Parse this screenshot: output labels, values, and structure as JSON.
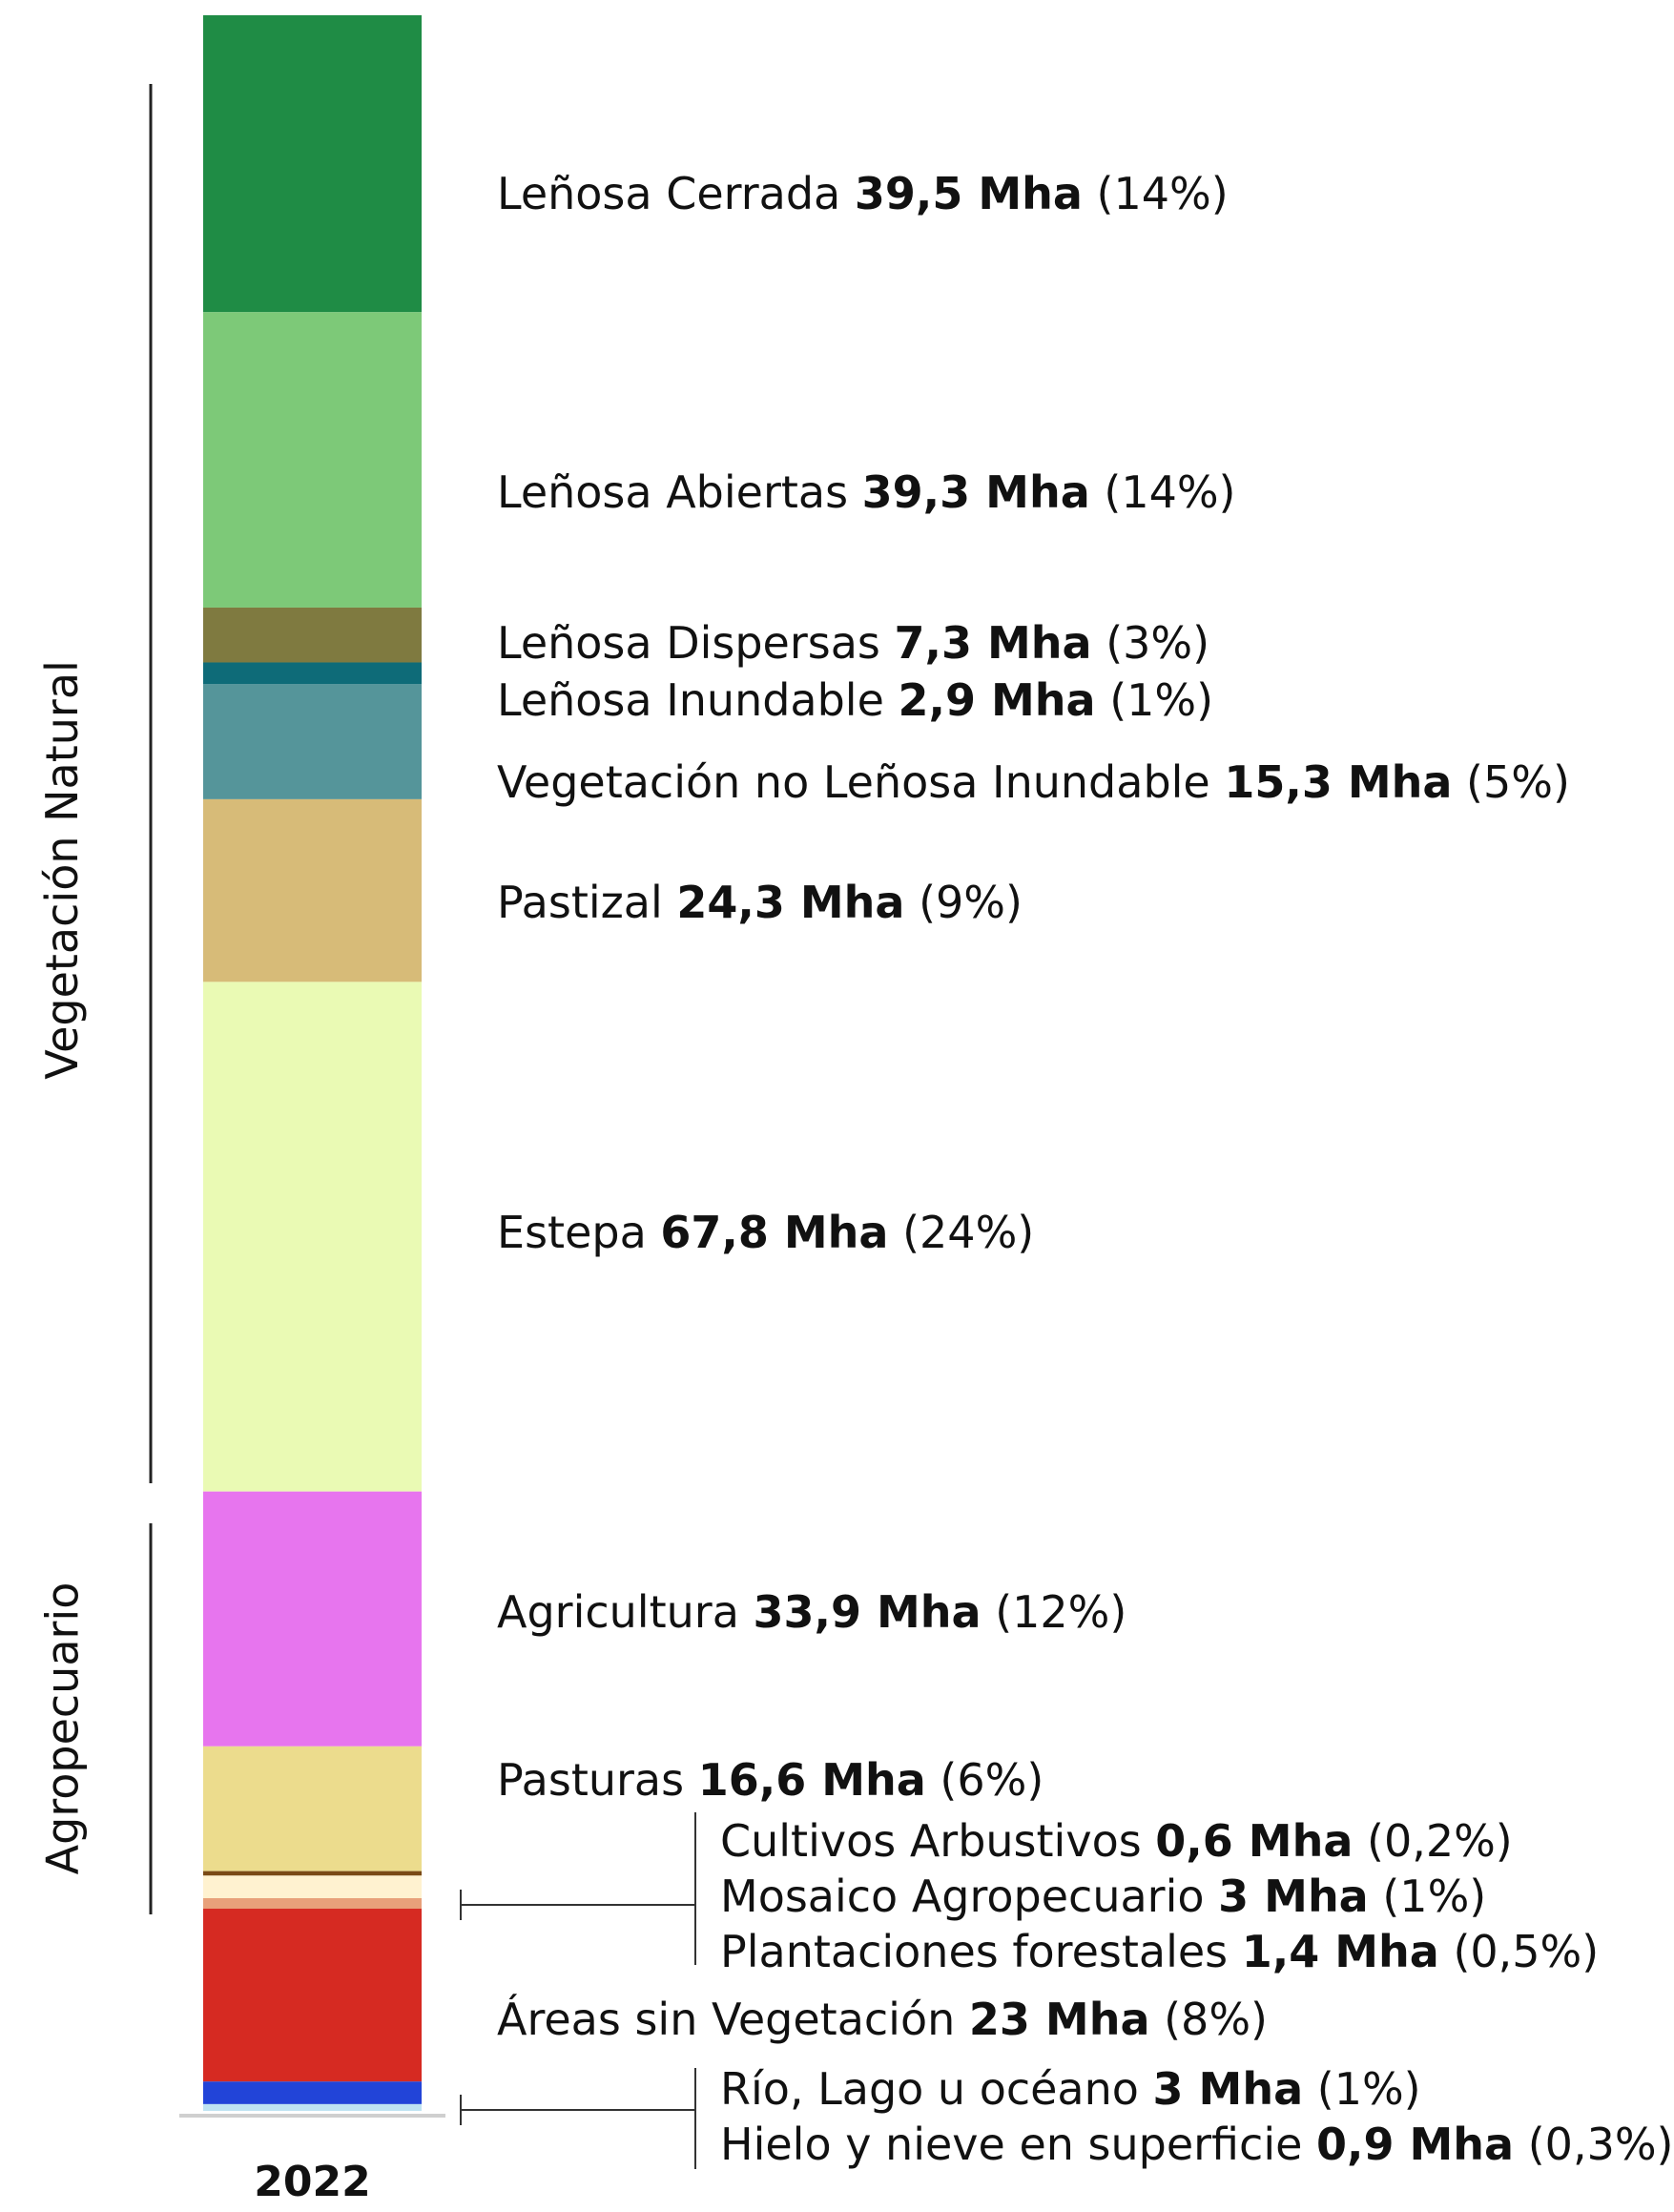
{
  "chart_data": {
    "type": "bar",
    "stacked": true,
    "categories": [
      "2022"
    ],
    "unit": "Mha",
    "series": [
      {
        "name": "Leñosa Cerrada",
        "value": 39.5,
        "value_label": "39,5 Mha",
        "pct_label": "(14%)",
        "color": "#1f8c45"
      },
      {
        "name": "Leñosa Abiertas",
        "value": 39.3,
        "value_label": "39,3 Mha",
        "pct_label": "(14%)",
        "color": "#7dc978"
      },
      {
        "name": "Leñosa Dispersas",
        "value": 7.3,
        "value_label": "7,3 Mha",
        "pct_label": "(3%)",
        "color": "#7f7a40"
      },
      {
        "name": "Leñosa Inundable ",
        "value": 2.9,
        "value_label": "2,9 Mha",
        "pct_label": "(1%)",
        "color": "#0e6b78"
      },
      {
        "name": "Vegetación no Leñosa Inundable",
        "value": 15.3,
        "value_label": "15,3 Mha",
        "pct_label": "(5%)",
        "color": "#55959a"
      },
      {
        "name": "Pastizal",
        "value": 24.3,
        "value_label": "24,3 Mha",
        "pct_label": "(9%)",
        "color": "#d7bb78"
      },
      {
        "name": "Estepa",
        "value": 67.8,
        "value_label": "67,8 Mha",
        "pct_label": "(24%)",
        "color": "#eafab4"
      },
      {
        "name": "Agricultura",
        "value": 33.9,
        "value_label": "33,9 Mha",
        "pct_label": "(12%)",
        "color": "#e775ee"
      },
      {
        "name": "Pasturas",
        "value": 16.6,
        "value_label": "16,6 Mha",
        "pct_label": "(6%)",
        "color": "#ecdc8d"
      },
      {
        "name": "Cultivos Arbustivos",
        "value": 0.6,
        "value_label": "0,6 Mha",
        "pct_label": "(0,2%)",
        "color": "#7a4a16"
      },
      {
        "name": "Mosaico Agropecuario",
        "value": 3,
        "value_label": "3 Mha",
        "pct_label": "(1%)",
        "color": "#fff2d0"
      },
      {
        "name": "Plantaciones forestales",
        "value": 1.4,
        "value_label": "1,4 Mha",
        "pct_label": "(0,5%)",
        "color": "#e8a07a"
      },
      {
        "name": "Áreas sin Vegetación",
        "value": 23,
        "value_label": "23 Mha",
        "pct_label": "(8%)",
        "color": "#d62a22"
      },
      {
        "name": "Río, Lago u océano",
        "value": 3,
        "value_label": "3 Mha",
        "pct_label": "(1%)",
        "color": "#2244d8"
      },
      {
        "name": "Hielo y nieve en superficie",
        "value": 0.9,
        "value_label": "0,9 Mha",
        "pct_label": "(0,3%)",
        "color": "#bfe3f2"
      }
    ],
    "groups": [
      {
        "label": "Vegetación Natural",
        "from": 0,
        "to": 6
      },
      {
        "label": "Agropecuario",
        "from": 7,
        "to": 11
      }
    ],
    "bracketed": [
      [
        9,
        10,
        11
      ],
      [
        13,
        14
      ]
    ],
    "xlabel": "2022"
  }
}
